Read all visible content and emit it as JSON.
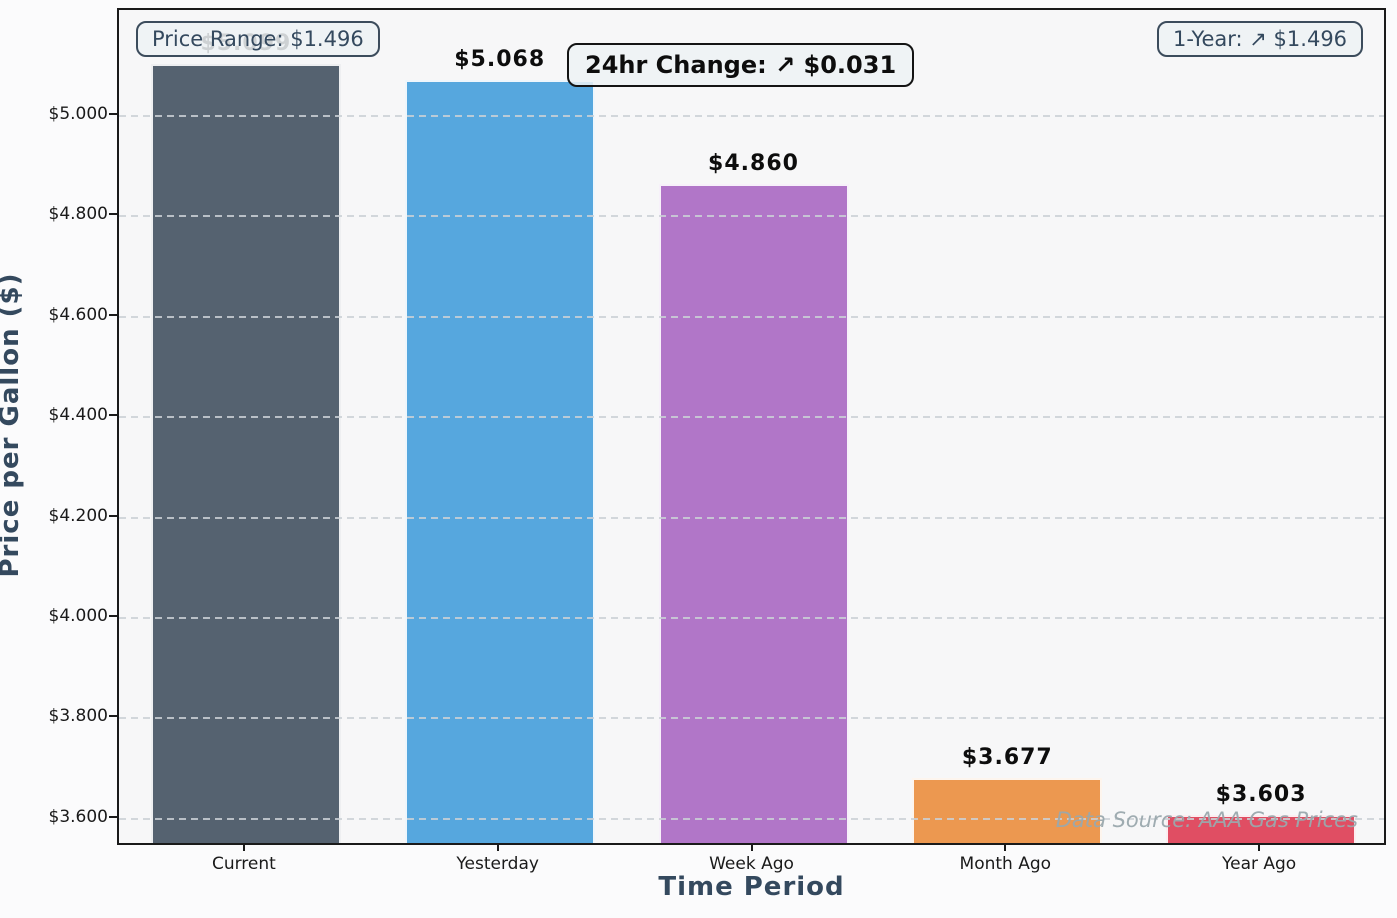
{
  "chart_data": {
    "type": "bar",
    "categories": [
      "Current",
      "Yesterday",
      "Week Ago",
      "Month Ago",
      "Year Ago"
    ],
    "values": [
      5.099,
      5.068,
      4.86,
      3.677,
      3.603
    ],
    "bar_labels": [
      "$5.099",
      "$5.068",
      "$4.860",
      "$3.677",
      "$3.603"
    ],
    "bar_colors": [
      "#556270",
      "#56a7de",
      "#b176c8",
      "#ec9850",
      "#e04e63"
    ],
    "xlabel": "Time Period",
    "ylabel": "Price per Gallon ($)",
    "ytick_values": [
      3.6,
      3.8,
      4.0,
      4.2,
      4.4,
      4.6,
      4.8,
      5.0
    ],
    "ytick_labels": [
      "$3.600",
      "$3.800",
      "$4.000",
      "$4.200",
      "$4.400",
      "$4.600",
      "$4.800",
      "$5.000"
    ],
    "ylim": [
      3.544,
      5.211
    ],
    "grid": "horizontal-dashed",
    "legend": "none",
    "annotations": {
      "price_range": "Price Range: $1.496",
      "day_change": "24hr Change: ↗ $0.031",
      "year_change": "1-Year: ↗ $1.496"
    },
    "watermark": "Data Source: AAA Gas Prices"
  },
  "colors": {
    "axis_label_color": "#34495e",
    "annotation_text_color": "#34495e",
    "plot_background": "#f7f7f8",
    "figure_background": "#fbfbfc",
    "grid_color": "#cbd1d6"
  }
}
